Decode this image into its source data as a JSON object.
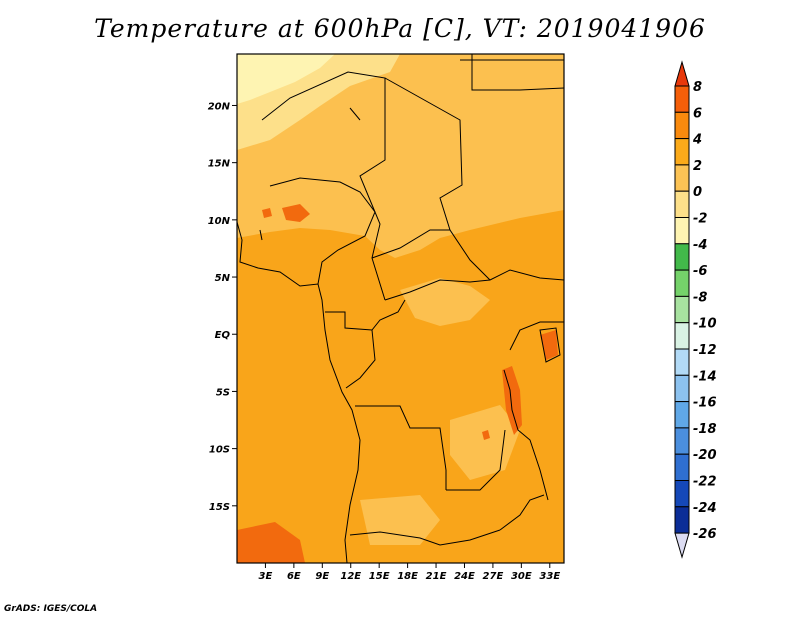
{
  "title": "Temperature at 600hPa [C], VT: 2019041906",
  "credit": "GrADS: IGES/COLA",
  "map": {
    "lon_range": [
      0,
      34.5
    ],
    "lat_range": [
      -20,
      24.5
    ],
    "lon_ticks": [
      {
        "value": 3,
        "label": "3E"
      },
      {
        "value": 6,
        "label": "6E"
      },
      {
        "value": 9,
        "label": "9E"
      },
      {
        "value": 12,
        "label": "12E"
      },
      {
        "value": 15,
        "label": "15E"
      },
      {
        "value": 18,
        "label": "18E"
      },
      {
        "value": 21,
        "label": "21E"
      },
      {
        "value": 24,
        "label": "24E"
      },
      {
        "value": 27,
        "label": "27E"
      },
      {
        "value": 30,
        "label": "30E"
      },
      {
        "value": 33,
        "label": "33E"
      }
    ],
    "lat_ticks": [
      {
        "value": 20,
        "label": "20N"
      },
      {
        "value": 15,
        "label": "15N"
      },
      {
        "value": 10,
        "label": "10N"
      },
      {
        "value": 5,
        "label": "5N"
      },
      {
        "value": 0,
        "label": "EQ"
      },
      {
        "value": -5,
        "label": "5S"
      },
      {
        "value": -10,
        "label": "10S"
      },
      {
        "value": -15,
        "label": "15S"
      }
    ],
    "dominant_range": "2 to 4 C over most of central Africa",
    "warm_spots": "4 to 6 C near Nigeria, Lake Tanganyika, and Angola coast",
    "cool_spots": "-4 to 0 C over the Sahara in the north"
  },
  "colorbar": {
    "levels": [
      "8",
      "6",
      "4",
      "2",
      "0",
      "-2",
      "-4",
      "-6",
      "-8",
      "-10",
      "-12",
      "-14",
      "-16",
      "-18",
      "-20",
      "-22",
      "-24",
      "-26"
    ],
    "colors": [
      "#e8380b",
      "#f55f0a",
      "#f98a0e",
      "#fbaa1a",
      "#fcc355",
      "#fde08a",
      "#fef4b2",
      "#42b94a",
      "#75d26a",
      "#a8e2a0",
      "#d9f2e4",
      "#b2daf6",
      "#8cc2ef",
      "#60a8e7",
      "#4b8fde",
      "#2f6fd1",
      "#1548b8",
      "#0b2d97",
      "#0f1870",
      "#dcdcf2"
    ]
  }
}
